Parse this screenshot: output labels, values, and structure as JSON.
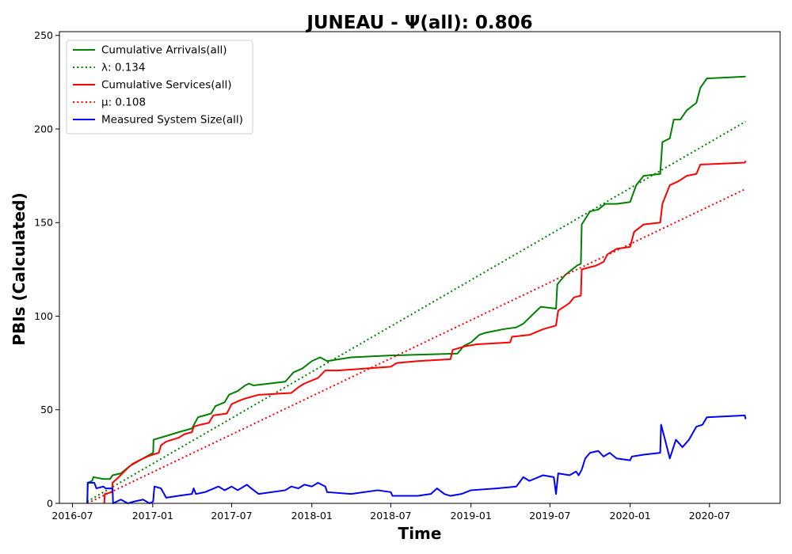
{
  "chart_data": {
    "type": "line",
    "title": "JUNEAU -  Ψ(all): 0.806",
    "xlabel": "Time",
    "ylabel": "PBIs (Calculated)",
    "xlim": [
      "2016-06-01",
      "2020-12-10"
    ],
    "ylim": [
      0,
      252
    ],
    "x_ticks": [
      "2016-07",
      "2017-01",
      "2017-07",
      "2018-01",
      "2018-07",
      "2019-01",
      "2019-07",
      "2020-01",
      "2020-07"
    ],
    "y_ticks": [
      0,
      50,
      100,
      150,
      200,
      250
    ],
    "grid": false,
    "legend_position": "upper left",
    "series": [
      {
        "name": "Cumulative Arrivals(all)",
        "style": "solid",
        "color": "#008000",
        "points": [
          [
            "2016-08-04",
            0
          ],
          [
            "2016-08-05",
            11
          ],
          [
            "2016-08-15",
            12
          ],
          [
            "2016-08-18",
            14
          ],
          [
            "2016-09-10",
            13
          ],
          [
            "2016-09-25",
            13
          ],
          [
            "2016-10-01",
            15
          ],
          [
            "2016-10-20",
            16
          ],
          [
            "2016-11-10",
            20
          ],
          [
            "2016-11-25",
            22
          ],
          [
            "2016-12-10",
            24
          ],
          [
            "2016-12-25",
            26
          ],
          [
            "2017-01-02",
            27
          ],
          [
            "2017-01-03",
            34
          ],
          [
            "2017-02-01",
            36
          ],
          [
            "2017-03-01",
            38
          ],
          [
            "2017-04-01",
            40
          ],
          [
            "2017-04-15",
            46
          ],
          [
            "2017-05-15",
            48
          ],
          [
            "2017-05-25",
            52
          ],
          [
            "2017-06-15",
            54
          ],
          [
            "2017-06-25",
            58
          ],
          [
            "2017-07-15",
            60
          ],
          [
            "2017-08-01",
            63
          ],
          [
            "2017-08-10",
            64
          ],
          [
            "2017-08-20",
            63
          ],
          [
            "2017-11-01",
            65
          ],
          [
            "2017-11-20",
            70
          ],
          [
            "2017-12-10",
            72
          ],
          [
            "2018-01-01",
            76
          ],
          [
            "2018-01-20",
            78
          ],
          [
            "2018-02-05",
            76
          ],
          [
            "2018-04-01",
            78
          ],
          [
            "2018-07-01",
            79
          ],
          [
            "2018-12-01",
            80
          ],
          [
            "2018-12-15",
            84
          ],
          [
            "2019-01-01",
            86
          ],
          [
            "2019-01-20",
            90
          ],
          [
            "2019-02-01",
            91
          ],
          [
            "2019-03-15",
            93
          ],
          [
            "2019-04-15",
            94
          ],
          [
            "2019-05-01",
            96
          ],
          [
            "2019-06-01",
            103
          ],
          [
            "2019-06-10",
            105
          ],
          [
            "2019-07-15",
            104
          ],
          [
            "2019-07-18",
            117
          ],
          [
            "2019-08-05",
            122
          ],
          [
            "2019-09-01",
            127
          ],
          [
            "2019-09-10",
            128
          ],
          [
            "2019-09-12",
            149
          ],
          [
            "2019-10-01",
            156
          ],
          [
            "2019-10-20",
            157
          ],
          [
            "2019-11-05",
            160
          ],
          [
            "2019-12-01",
            160
          ],
          [
            "2020-01-01",
            161
          ],
          [
            "2020-01-15",
            170
          ],
          [
            "2020-02-01",
            175
          ],
          [
            "2020-03-10",
            176
          ],
          [
            "2020-03-15",
            193
          ],
          [
            "2020-04-01",
            195
          ],
          [
            "2020-04-10",
            205
          ],
          [
            "2020-04-25",
            205
          ],
          [
            "2020-05-10",
            210
          ],
          [
            "2020-06-01",
            214
          ],
          [
            "2020-06-10",
            222
          ],
          [
            "2020-06-25",
            227
          ],
          [
            "2020-09-22",
            228
          ]
        ]
      },
      {
        "name": "λ: 0.134",
        "style": "dotted",
        "color": "#008000",
        "points": [
          [
            "2016-08-04",
            1
          ],
          [
            "2020-09-22",
            204
          ]
        ]
      },
      {
        "name": "Cumulative Services(all)",
        "style": "solid",
        "color": "#ff0000",
        "points": [
          [
            "2016-09-12",
            0
          ],
          [
            "2016-09-13",
            5
          ],
          [
            "2016-09-30",
            6
          ],
          [
            "2016-10-01",
            11
          ],
          [
            "2016-10-15",
            14
          ],
          [
            "2016-11-01",
            18
          ],
          [
            "2016-11-15",
            21
          ],
          [
            "2016-12-01",
            23
          ],
          [
            "2016-12-20",
            25
          ],
          [
            "2017-01-01",
            26
          ],
          [
            "2017-01-15",
            27
          ],
          [
            "2017-01-20",
            31
          ],
          [
            "2017-02-01",
            33
          ],
          [
            "2017-02-15",
            34
          ],
          [
            "2017-03-01",
            35
          ],
          [
            "2017-03-15",
            37
          ],
          [
            "2017-04-01",
            38
          ],
          [
            "2017-04-05",
            41
          ],
          [
            "2017-04-20",
            42
          ],
          [
            "2017-05-10",
            43
          ],
          [
            "2017-05-20",
            47
          ],
          [
            "2017-06-20",
            48
          ],
          [
            "2017-07-01",
            53
          ],
          [
            "2017-07-20",
            55
          ],
          [
            "2017-08-01",
            56
          ],
          [
            "2017-09-01",
            58
          ],
          [
            "2017-11-15",
            59
          ],
          [
            "2017-12-01",
            62
          ],
          [
            "2017-12-15",
            64
          ],
          [
            "2018-01-15",
            67
          ],
          [
            "2018-02-01",
            71
          ],
          [
            "2018-03-01",
            71
          ],
          [
            "2018-07-01",
            73
          ],
          [
            "2018-07-15",
            75
          ],
          [
            "2018-09-01",
            76
          ],
          [
            "2018-11-15",
            77
          ],
          [
            "2018-11-20",
            82
          ],
          [
            "2018-12-20",
            84
          ],
          [
            "2019-01-15",
            85
          ],
          [
            "2019-04-01",
            86
          ],
          [
            "2019-04-05",
            89
          ],
          [
            "2019-05-15",
            90
          ],
          [
            "2019-06-15",
            93
          ],
          [
            "2019-07-15",
            95
          ],
          [
            "2019-07-20",
            103
          ],
          [
            "2019-08-15",
            107
          ],
          [
            "2019-08-25",
            110
          ],
          [
            "2019-09-10",
            111
          ],
          [
            "2019-09-12",
            125
          ],
          [
            "2019-10-15",
            127
          ],
          [
            "2019-11-01",
            129
          ],
          [
            "2019-11-10",
            133
          ],
          [
            "2019-12-01",
            136
          ],
          [
            "2020-01-01",
            137
          ],
          [
            "2020-01-10",
            145
          ],
          [
            "2020-02-01",
            149
          ],
          [
            "2020-03-10",
            150
          ],
          [
            "2020-03-15",
            160
          ],
          [
            "2020-04-01",
            170
          ],
          [
            "2020-04-20",
            172
          ],
          [
            "2020-05-10",
            175
          ],
          [
            "2020-06-01",
            176
          ],
          [
            "2020-06-10",
            181
          ],
          [
            "2020-09-20",
            182
          ],
          [
            "2020-09-22",
            183
          ]
        ]
      },
      {
        "name": "μ: 0.108",
        "style": "dotted",
        "color": "#ff0000",
        "points": [
          [
            "2016-08-04",
            0
          ],
          [
            "2020-09-22",
            168
          ]
        ]
      },
      {
        "name": "Measured System Size(all)",
        "style": "solid",
        "color": "#0000ff",
        "points": [
          [
            "2016-08-04",
            0
          ],
          [
            "2016-08-05",
            11
          ],
          [
            "2016-08-20",
            11
          ],
          [
            "2016-08-25",
            8
          ],
          [
            "2016-09-10",
            9
          ],
          [
            "2016-09-15",
            8
          ],
          [
            "2016-10-01",
            8
          ],
          [
            "2016-10-02",
            0
          ],
          [
            "2016-10-20",
            2
          ],
          [
            "2016-11-05",
            0
          ],
          [
            "2016-11-20",
            1
          ],
          [
            "2016-12-10",
            2
          ],
          [
            "2016-12-25",
            0
          ],
          [
            "2017-01-02",
            1
          ],
          [
            "2017-01-05",
            9
          ],
          [
            "2017-01-20",
            8
          ],
          [
            "2017-02-01",
            3
          ],
          [
            "2017-03-01",
            4
          ],
          [
            "2017-04-01",
            5
          ],
          [
            "2017-04-05",
            8
          ],
          [
            "2017-04-10",
            5
          ],
          [
            "2017-05-01",
            6
          ],
          [
            "2017-06-01",
            9
          ],
          [
            "2017-06-15",
            7
          ],
          [
            "2017-07-01",
            9
          ],
          [
            "2017-07-15",
            7
          ],
          [
            "2017-08-05",
            10
          ],
          [
            "2017-08-15",
            8
          ],
          [
            "2017-09-01",
            5
          ],
          [
            "2017-11-01",
            7
          ],
          [
            "2017-11-15",
            9
          ],
          [
            "2017-12-01",
            8
          ],
          [
            "2017-12-15",
            10
          ],
          [
            "2018-01-01",
            9
          ],
          [
            "2018-01-15",
            11
          ],
          [
            "2018-02-01",
            9
          ],
          [
            "2018-02-05",
            6
          ],
          [
            "2018-04-01",
            5
          ],
          [
            "2018-06-01",
            7
          ],
          [
            "2018-07-01",
            6
          ],
          [
            "2018-07-05",
            4
          ],
          [
            "2018-09-01",
            4
          ],
          [
            "2018-10-01",
            5
          ],
          [
            "2018-10-15",
            8
          ],
          [
            "2018-11-01",
            5
          ],
          [
            "2018-11-15",
            4
          ],
          [
            "2018-12-10",
            5
          ],
          [
            "2019-01-01",
            7
          ],
          [
            "2019-03-01",
            8
          ],
          [
            "2019-04-15",
            9
          ],
          [
            "2019-05-01",
            14
          ],
          [
            "2019-05-15",
            12
          ],
          [
            "2019-06-15",
            15
          ],
          [
            "2019-07-10",
            14
          ],
          [
            "2019-07-15",
            5
          ],
          [
            "2019-07-20",
            16
          ],
          [
            "2019-08-15",
            15
          ],
          [
            "2019-08-30",
            17
          ],
          [
            "2019-09-05",
            15
          ],
          [
            "2019-09-12",
            18
          ],
          [
            "2019-09-20",
            24
          ],
          [
            "2019-10-01",
            27
          ],
          [
            "2019-10-20",
            28
          ],
          [
            "2019-11-01",
            25
          ],
          [
            "2019-11-15",
            27
          ],
          [
            "2019-12-01",
            24
          ],
          [
            "2020-01-01",
            23
          ],
          [
            "2020-01-05",
            25
          ],
          [
            "2020-02-01",
            26
          ],
          [
            "2020-03-10",
            27
          ],
          [
            "2020-03-12",
            42
          ],
          [
            "2020-03-20",
            35
          ],
          [
            "2020-04-01",
            24
          ],
          [
            "2020-04-15",
            34
          ],
          [
            "2020-04-30",
            30
          ],
          [
            "2020-05-15",
            34
          ],
          [
            "2020-06-01",
            41
          ],
          [
            "2020-06-15",
            42
          ],
          [
            "2020-06-25",
            46
          ],
          [
            "2020-09-20",
            47
          ],
          [
            "2020-09-22",
            45
          ]
        ]
      }
    ]
  }
}
